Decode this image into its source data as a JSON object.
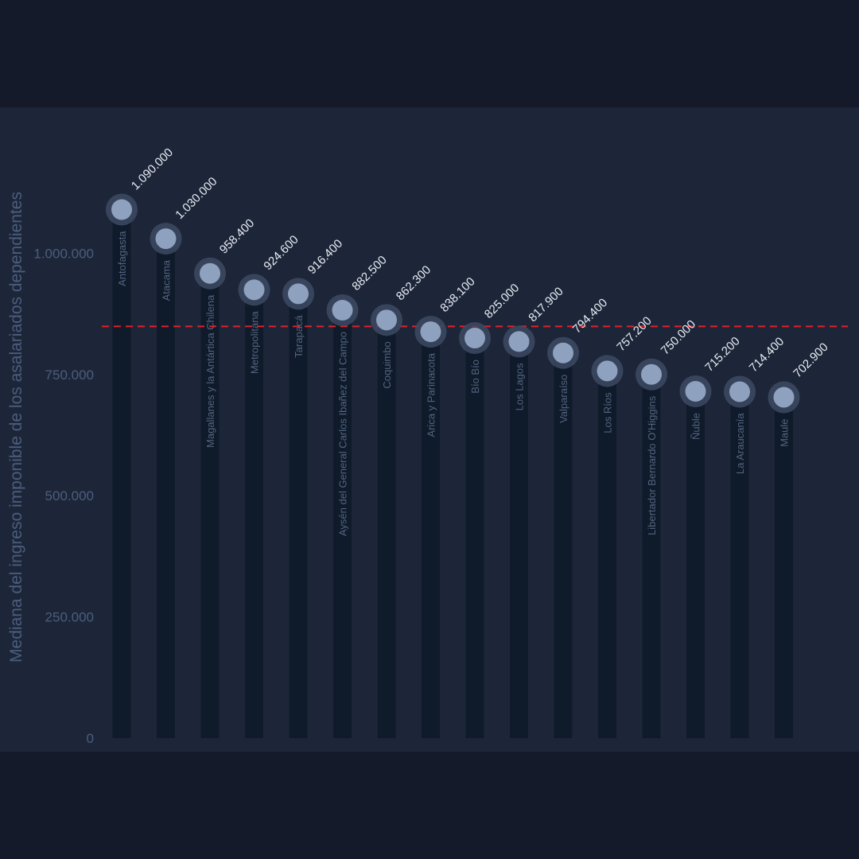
{
  "chart_data": {
    "type": "lollipop",
    "title": "",
    "ylabel": "Mediana del ingreso imponible de los asalariados dependientes",
    "ylim": [
      0,
      1150000
    ],
    "yticks": [
      {
        "value": 0,
        "label": "0"
      },
      {
        "value": 250000,
        "label": "250.000"
      },
      {
        "value": 500000,
        "label": "500.000"
      },
      {
        "value": 750000,
        "label": "750.000"
      },
      {
        "value": 1000000,
        "label": "1.000.000"
      }
    ],
    "reference_line": {
      "value": 849000,
      "color": "#e0202a",
      "style": "dashed"
    },
    "categories": [
      "Antofagasta",
      "Atacama",
      "Magallanes y la Antártica Chilena",
      "Metropolitana",
      "Tarapacá",
      "Aysén del General Carlos Ibañez del Campo",
      "Coquimbo",
      "Arica y Parinacota",
      "Bío Bío",
      "Los Lagos",
      "Valparaíso",
      "Los Ríos",
      "Libertador Bernardo O'Higgins",
      "Ñuble",
      "La Araucanía",
      "Maule"
    ],
    "values": [
      1090000,
      1030000,
      958400,
      924600,
      916400,
      882500,
      862300,
      838100,
      825000,
      817900,
      794400,
      757200,
      750000,
      715200,
      714400,
      702900
    ],
    "value_labels": [
      "1.090.000",
      "1.030.000",
      "958.400",
      "924.600",
      "916.400",
      "882.500",
      "862.300",
      "838.100",
      "825.000",
      "817.900",
      "794.400",
      "757.200",
      "750.000",
      "715.200",
      "714.400",
      "702.900"
    ],
    "colors": {
      "stem": "#0f1a2a",
      "marker": "#8ea1bf",
      "halo": "#3c4a63"
    }
  }
}
